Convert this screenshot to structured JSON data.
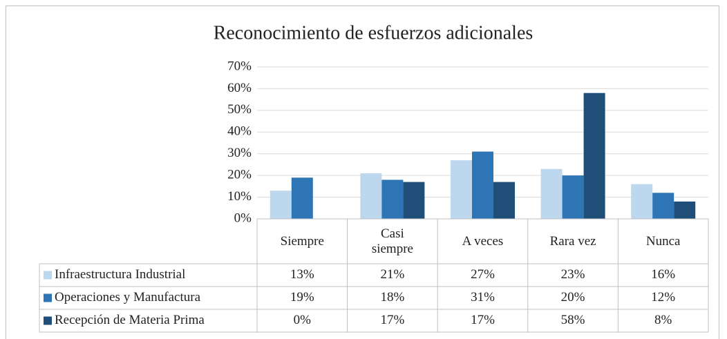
{
  "chart_data": {
    "type": "bar",
    "title": "Reconocimiento de esfuerzos adicionales",
    "categories": [
      "Siempre",
      "Casi siempre",
      "A veces",
      "Rara vez",
      "Nunca"
    ],
    "series": [
      {
        "name": "Infraestructura Industrial",
        "color": "#bdd7ee",
        "values": [
          13,
          21,
          27,
          23,
          16
        ],
        "value_labels": [
          "13%",
          "21%",
          "27%",
          "23%",
          "16%"
        ]
      },
      {
        "name": "Operaciones y Manufactura",
        "color": "#2e75b6",
        "values": [
          19,
          18,
          31,
          20,
          12
        ],
        "value_labels": [
          "19%",
          "18%",
          "31%",
          "20%",
          "12%"
        ]
      },
      {
        "name": "Recepción de Materia Prima",
        "color": "#1f4e79",
        "values": [
          0,
          17,
          17,
          58,
          8
        ],
        "value_labels": [
          "0%",
          "17%",
          "17%",
          "58%",
          "8%"
        ]
      }
    ],
    "ylim": [
      0,
      70
    ],
    "yticks": [
      {
        "value": 0,
        "label": "0%"
      },
      {
        "value": 10,
        "label": "10%"
      },
      {
        "value": 20,
        "label": "20%"
      },
      {
        "value": 30,
        "label": "30%"
      },
      {
        "value": 40,
        "label": "40%"
      },
      {
        "value": 50,
        "label": "50%"
      },
      {
        "value": 60,
        "label": "60%"
      },
      {
        "value": 70,
        "label": "70%"
      }
    ],
    "grid": true
  }
}
